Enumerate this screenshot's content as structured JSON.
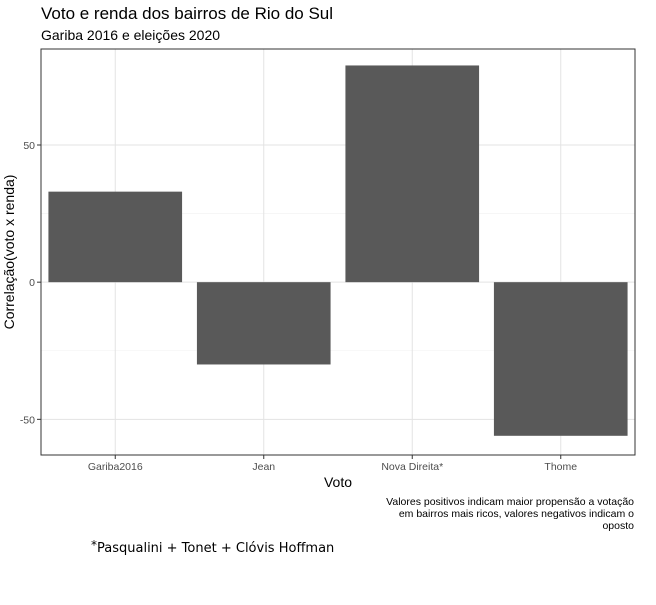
{
  "chart_data": {
    "type": "bar",
    "title": "Voto e renda dos bairros de Rio do Sul",
    "subtitle": "Gariba 2016 e eleições 2020",
    "xlabel": "Voto",
    "ylabel": "Correlação(voto x renda)",
    "categories": [
      "Gariba2016",
      "Jean",
      "Nova Direita*",
      "Thome"
    ],
    "values": [
      33,
      -30,
      79,
      -56
    ],
    "ylim": [
      -63,
      85
    ],
    "yticks": [
      -50,
      0,
      50
    ],
    "bar_color": "#595959",
    "grid": true,
    "caption": "Valores positivos indicam maior propensão a votação em bairros mais ricos, valores negativos indicam o oposto"
  },
  "footnote": {
    "star": "*",
    "text": "Pasqualini + Tonet + Clóvis Hoffman"
  }
}
